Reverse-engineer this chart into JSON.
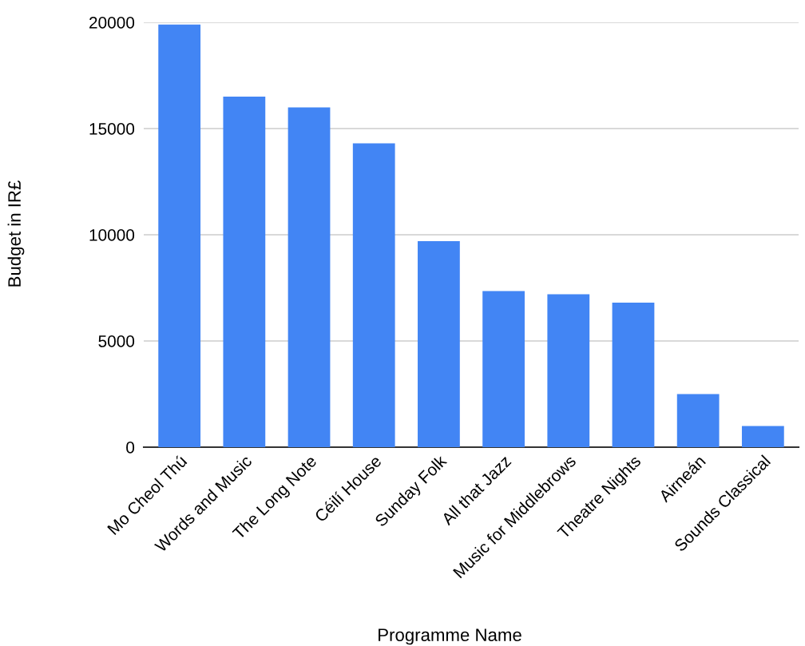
{
  "chart_data": {
    "type": "bar",
    "xlabel": "Programme Name",
    "ylabel": "Budget in IR£",
    "categories": [
      "Mo Cheol Thú",
      "Words and Music",
      "The Long Note",
      "Céilí House",
      "Sunday Folk",
      "All that Jazz",
      "Music for Middlebrows",
      "Theatre Nights",
      "Airneán",
      "Sounds Classical"
    ],
    "values": [
      19900,
      16500,
      16000,
      14300,
      9700,
      7350,
      7200,
      6800,
      2500,
      1000
    ],
    "color": "#4285f4",
    "ylim": [
      0,
      20000
    ],
    "yticks": [
      0,
      5000,
      10000,
      15000,
      20000
    ],
    "grid": "y",
    "legend": false
  }
}
